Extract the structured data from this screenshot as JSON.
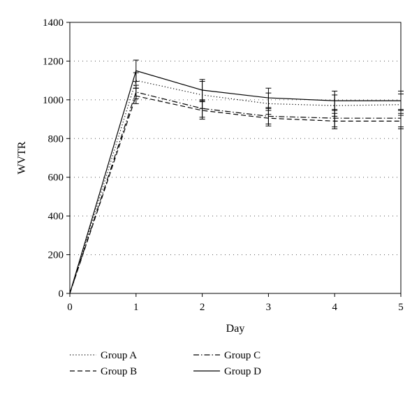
{
  "chart_data": {
    "type": "line",
    "xlabel": "Day",
    "ylabel": "WVTR",
    "xlim": [
      0,
      5
    ],
    "ylim": [
      0,
      1400
    ],
    "x": [
      0,
      1,
      2,
      3,
      4,
      5
    ],
    "xticks": [
      0,
      1,
      2,
      3,
      4,
      5
    ],
    "yticks": [
      0,
      200,
      400,
      600,
      800,
      1000,
      1200,
      1400
    ],
    "grid": "horizontal dotted",
    "legend_position": "bottom",
    "series": [
      {
        "name": "Group A",
        "style": "dotted",
        "values": [
          0,
          1100,
          1025,
          980,
          970,
          975
        ],
        "errors": [
          0,
          40,
          70,
          55,
          55,
          55
        ]
      },
      {
        "name": "Group B",
        "style": "dashed",
        "values": [
          0,
          1020,
          945,
          905,
          890,
          890
        ],
        "errors": [
          0,
          40,
          45,
          40,
          40,
          40
        ]
      },
      {
        "name": "Group C",
        "style": "dashdot",
        "values": [
          0,
          1040,
          955,
          915,
          905,
          905
        ],
        "errors": [
          0,
          35,
          45,
          40,
          45,
          45
        ]
      },
      {
        "name": "Group D",
        "style": "solid",
        "values": [
          0,
          1150,
          1050,
          1010,
          995,
          995
        ],
        "errors": [
          0,
          55,
          55,
          50,
          50,
          50
        ]
      }
    ]
  }
}
